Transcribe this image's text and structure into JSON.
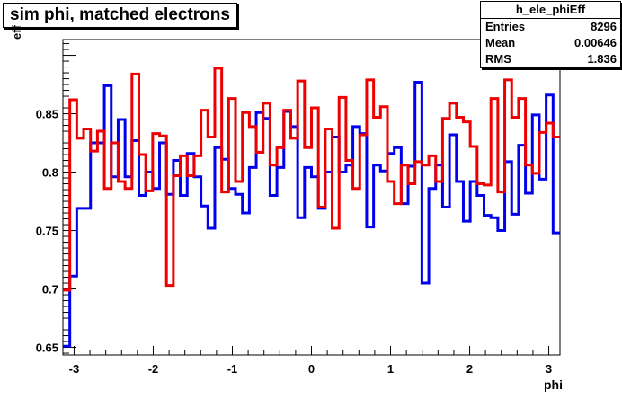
{
  "title": "sim phi, matched electrons",
  "stats": {
    "name": "h_ele_phiEff",
    "rows": [
      {
        "label": "Entries",
        "value": "8296"
      },
      {
        "label": "Mean",
        "value": "0.00646"
      },
      {
        "label": "RMS",
        "value": "1.836"
      }
    ]
  },
  "chart_data": {
    "type": "line",
    "title": "sim phi, matched electrons",
    "xlabel": "phi",
    "ylabel": "eff",
    "xlim": [
      -3.1416,
      3.1416
    ],
    "ylim": [
      0.6435,
      0.9135
    ],
    "xticks": [
      -3,
      -2,
      -1,
      0,
      1,
      2,
      3
    ],
    "yticks": [
      0.65,
      0.7,
      0.75,
      0.8,
      0.85
    ],
    "step": true,
    "bins": 72,
    "colors": {
      "blue": "#0000ee",
      "red": "#ee0000"
    },
    "series": [
      {
        "color": "blue",
        "values": [
          0.651,
          0.711,
          0.769,
          0.769,
          0.825,
          0.825,
          0.874,
          0.796,
          0.845,
          0.796,
          0.827,
          0.78,
          0.8,
          0.786,
          0.825,
          0.781,
          0.81,
          0.78,
          0.816,
          0.796,
          0.771,
          0.752,
          0.821,
          0.811,
          0.786,
          0.781,
          0.765,
          0.804,
          0.851,
          0.846,
          0.78,
          0.804,
          0.852,
          0.839,
          0.761,
          0.804,
          0.796,
          0.769,
          0.8,
          0.83,
          0.8,
          0.806,
          0.839,
          0.833,
          0.753,
          0.806,
          0.801,
          0.816,
          0.821,
          0.773,
          0.805,
          0.877,
          0.705,
          0.786,
          0.806,
          0.77,
          0.832,
          0.792,
          0.758,
          0.792,
          0.78,
          0.763,
          0.761,
          0.75,
          0.809,
          0.764,
          0.823,
          0.782,
          0.849,
          0.794,
          0.866,
          0.748
        ]
      },
      {
        "color": "red",
        "values": [
          0.699,
          0.862,
          0.829,
          0.837,
          0.818,
          0.835,
          0.786,
          0.825,
          0.792,
          0.786,
          0.884,
          0.815,
          0.784,
          0.833,
          0.831,
          0.703,
          0.797,
          0.814,
          0.797,
          0.814,
          0.853,
          0.83,
          0.889,
          0.783,
          0.863,
          0.792,
          0.851,
          0.839,
          0.817,
          0.859,
          0.806,
          0.821,
          0.853,
          0.829,
          0.878,
          0.821,
          0.855,
          0.77,
          0.837,
          0.752,
          0.864,
          0.81,
          0.786,
          0.832,
          0.879,
          0.847,
          0.856,
          0.792,
          0.773,
          0.806,
          0.79,
          0.809,
          0.806,
          0.814,
          0.792,
          0.846,
          0.859,
          0.847,
          0.843,
          0.822,
          0.79,
          0.789,
          0.863,
          0.783,
          0.879,
          0.847,
          0.863,
          0.806,
          0.799,
          0.834,
          0.842,
          0.83
        ]
      }
    ]
  }
}
